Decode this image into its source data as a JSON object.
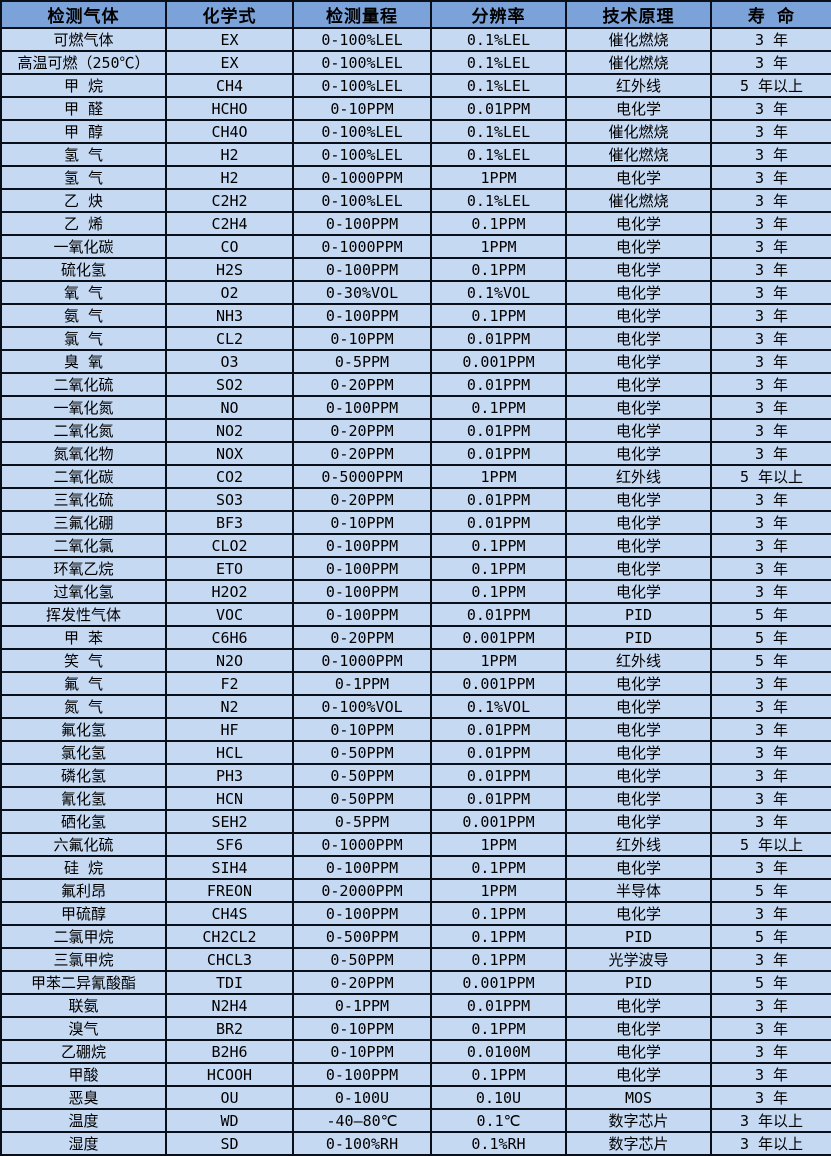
{
  "colors": {
    "header_bg": "#7ba3d9",
    "row_bg": "#c6d9f2",
    "border": "#0a0f1a",
    "text": "#000000"
  },
  "table": {
    "headers": [
      "检测气体",
      "化学式",
      "检测量程",
      "分辨率",
      "技术原理",
      "寿 命"
    ],
    "column_keys": [
      "gas-name",
      "formula",
      "range",
      "resolution",
      "principle",
      "lifespan"
    ],
    "rows": [
      [
        "可燃气体",
        "EX",
        "0-100%LEL",
        "0.1%LEL",
        "催化燃烧",
        "3 年"
      ],
      [
        "高温可燃（250℃）",
        "EX",
        "0-100%LEL",
        "0.1%LEL",
        "催化燃烧",
        "3 年"
      ],
      [
        "甲 烷",
        "CH4",
        "0-100%LEL",
        "0.1%LEL",
        "红外线",
        "5 年以上"
      ],
      [
        "甲 醛",
        "HCHO",
        "0-10PPM",
        "0.01PPM",
        "电化学",
        "3 年"
      ],
      [
        "甲 醇",
        "CH4O",
        "0-100%LEL",
        "0.1%LEL",
        "催化燃烧",
        "3 年"
      ],
      [
        "氢 气",
        "H2",
        "0-100%LEL",
        "0.1%LEL",
        "催化燃烧",
        "3 年"
      ],
      [
        "氢 气",
        "H2",
        "0-1000PPM",
        "1PPM",
        "电化学",
        "3 年"
      ],
      [
        "乙 炔",
        "C2H2",
        "0-100%LEL",
        "0.1%LEL",
        "催化燃烧",
        "3 年"
      ],
      [
        "乙 烯",
        "C2H4",
        "0-100PPM",
        "0.1PPM",
        "电化学",
        "3 年"
      ],
      [
        "一氧化碳",
        "CO",
        "0-1000PPM",
        "1PPM",
        "电化学",
        "3 年"
      ],
      [
        "硫化氢",
        "H2S",
        "0-100PPM",
        "0.1PPM",
        "电化学",
        "3 年"
      ],
      [
        "氧 气",
        "O2",
        "0-30%VOL",
        "0.1%VOL",
        "电化学",
        "3 年"
      ],
      [
        "氨 气",
        "NH3",
        "0-100PPM",
        "0.1PPM",
        "电化学",
        "3 年"
      ],
      [
        "氯 气",
        "CL2",
        "0-10PPM",
        "0.01PPM",
        "电化学",
        "3 年"
      ],
      [
        "臭 氧",
        "O3",
        "0-5PPM",
        "0.001PPM",
        "电化学",
        "3 年"
      ],
      [
        "二氧化硫",
        "SO2",
        "0-20PPM",
        "0.01PPM",
        "电化学",
        "3 年"
      ],
      [
        "一氧化氮",
        "NO",
        "0-100PPM",
        "0.1PPM",
        "电化学",
        "3 年"
      ],
      [
        "二氧化氮",
        "NO2",
        "0-20PPM",
        "0.01PPM",
        "电化学",
        "3 年"
      ],
      [
        "氮氧化物",
        "NOX",
        "0-20PPM",
        "0.01PPM",
        "电化学",
        "3 年"
      ],
      [
        "二氧化碳",
        "CO2",
        "0-5000PPM",
        "1PPM",
        "红外线",
        "5 年以上"
      ],
      [
        "三氧化硫",
        "SO3",
        "0-20PPM",
        "0.01PPM",
        "电化学",
        "3 年"
      ],
      [
        "三氟化硼",
        "BF3",
        "0-10PPM",
        "0.01PPM",
        "电化学",
        "3 年"
      ],
      [
        "二氧化氯",
        "CLO2",
        "0-100PPM",
        "0.1PPM",
        "电化学",
        "3 年"
      ],
      [
        "环氧乙烷",
        "ETO",
        "0-100PPM",
        "0.1PPM",
        "电化学",
        "3 年"
      ],
      [
        "过氧化氢",
        "H2O2",
        "0-100PPM",
        "0.1PPM",
        "电化学",
        "3 年"
      ],
      [
        "挥发性气体",
        "VOC",
        "0-100PPM",
        "0.01PPM",
        "PID",
        "5 年"
      ],
      [
        "甲 苯",
        "C6H6",
        "0-20PPM",
        "0.001PPM",
        "PID",
        "5 年"
      ],
      [
        "笑 气",
        "N2O",
        "0-1000PPM",
        "1PPM",
        "红外线",
        "5 年"
      ],
      [
        "氟 气",
        "F2",
        "0-1PPM",
        "0.001PPM",
        "电化学",
        "3 年"
      ],
      [
        "氮 气",
        "N2",
        "0-100%VOL",
        "0.1%VOL",
        "电化学",
        "3 年"
      ],
      [
        "氟化氢",
        "HF",
        "0-10PPM",
        "0.01PPM",
        "电化学",
        "3 年"
      ],
      [
        "氯化氢",
        "HCL",
        "0-50PPM",
        "0.01PPM",
        "电化学",
        "3 年"
      ],
      [
        "磷化氢",
        "PH3",
        "0-50PPM",
        "0.01PPM",
        "电化学",
        "3 年"
      ],
      [
        "氰化氢",
        "HCN",
        "0-50PPM",
        "0.01PPM",
        "电化学",
        "3 年"
      ],
      [
        "硒化氢",
        "SEH2",
        "0-5PPM",
        "0.001PPM",
        "电化学",
        "3 年"
      ],
      [
        "六氟化硫",
        "SF6",
        "0-1000PPM",
        "1PPM",
        "红外线",
        "5 年以上"
      ],
      [
        "硅 烷",
        "SIH4",
        "0-100PPM",
        "0.1PPM",
        "电化学",
        "3 年"
      ],
      [
        "氟利昂",
        "FREON",
        "0-2000PPM",
        "1PPM",
        "半导体",
        "5 年"
      ],
      [
        "甲硫醇",
        "CH4S",
        "0-100PPM",
        "0.1PPM",
        "电化学",
        "3 年"
      ],
      [
        "二氯甲烷",
        "CH2CL2",
        "0-500PPM",
        "0.1PPM",
        "PID",
        "5 年"
      ],
      [
        "三氯甲烷",
        "CHCL3",
        "0-50PPM",
        "0.1PPM",
        "光学波导",
        "3 年"
      ],
      [
        "甲苯二异氰酸酯",
        "TDI",
        "0-20PPM",
        "0.001PPM",
        "PID",
        "5 年"
      ],
      [
        "联氨",
        "N2H4",
        "0-1PPM",
        "0.01PPM",
        "电化学",
        "3 年"
      ],
      [
        "溴气",
        "BR2",
        "0-10PPM",
        "0.1PPM",
        "电化学",
        "3 年"
      ],
      [
        "乙硼烷",
        "B2H6",
        "0-10PPM",
        "0.0100M",
        "电化学",
        "3 年"
      ],
      [
        "甲酸",
        "HCOOH",
        "0-100PPM",
        "0.1PPM",
        "电化学",
        "3 年"
      ],
      [
        "恶臭",
        "OU",
        "0-100U",
        "0.10U",
        "MOS",
        "3 年"
      ],
      [
        "温度",
        "WD",
        "-40—80℃",
        "0.1℃",
        "数字芯片",
        "3 年以上"
      ],
      [
        "湿度",
        "SD",
        "0-100%RH",
        "0.1%RH",
        "数字芯片",
        "3 年以上"
      ]
    ]
  }
}
